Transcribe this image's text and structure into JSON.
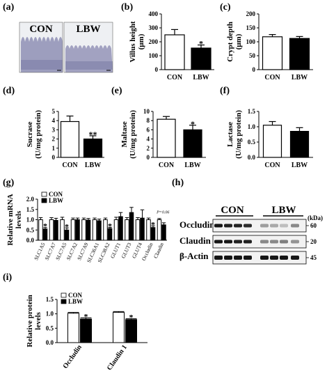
{
  "figure_labels": {
    "a": "(a)",
    "b": "(b)",
    "c": "(c)",
    "d": "(d)",
    "e": "(e)",
    "f": "(f)",
    "g": "(g)",
    "h": "(h)",
    "i": "(i)"
  },
  "histology": {
    "con_label": "CON",
    "lbw_label": "LBW",
    "colors": {
      "tissue": "#8e8fb4",
      "background": "#eef0f3"
    }
  },
  "colors": {
    "con_fill": "#ffffff",
    "lbw_fill": "#000000",
    "stroke": "#000000"
  },
  "chart_data": [
    {
      "id": "b",
      "type": "bar",
      "categories": [
        "CON",
        "LBW"
      ],
      "values": [
        250,
        155
      ],
      "errors": [
        38,
        22
      ],
      "ylabel": "Villus height (μm)",
      "ylabel_lines": [
        "Villus height",
        "(μm)"
      ],
      "ylim": [
        0,
        400
      ],
      "yticks": [
        "0",
        "100",
        "200",
        "300",
        "400"
      ],
      "significance": [
        "",
        "*"
      ]
    },
    {
      "id": "c",
      "type": "bar",
      "categories": [
        "CON",
        "LBW"
      ],
      "values": [
        118,
        112
      ],
      "errors": [
        8,
        7
      ],
      "ylabel": "Crypt depth (μm)",
      "ylabel_lines": [
        "Crypt depth",
        "(μm)"
      ],
      "ylim": [
        0,
        200
      ],
      "yticks": [
        "0",
        "50",
        "100",
        "150",
        "200"
      ],
      "significance": [
        "",
        ""
      ]
    },
    {
      "id": "d",
      "type": "bar",
      "categories": [
        "CON",
        "LBW"
      ],
      "values": [
        3.9,
        2.0
      ],
      "errors": [
        0.6,
        0.35
      ],
      "ylabel": "Sucrase (U/mg protein)",
      "ylabel_lines": [
        "Sucrase",
        "(U/mg protein)"
      ],
      "ylim": [
        0,
        5
      ],
      "yticks": [
        "0",
        "1",
        "2",
        "3",
        "4",
        "5"
      ],
      "significance": [
        "",
        "**"
      ]
    },
    {
      "id": "e",
      "type": "bar",
      "categories": [
        "CON",
        "LBW"
      ],
      "values": [
        8.3,
        6.0
      ],
      "errors": [
        0.6,
        1.0
      ],
      "ylabel": "Maltase (U/mg protein)",
      "ylabel_lines": [
        "Maltase",
        "(U/mg protein)"
      ],
      "ylim": [
        0,
        10
      ],
      "yticks": [
        "0",
        "2",
        "4",
        "6",
        "8",
        "10"
      ],
      "significance": [
        "",
        "*"
      ]
    },
    {
      "id": "f",
      "type": "bar",
      "categories": [
        "CON",
        "LBW"
      ],
      "values": [
        1.05,
        0.85
      ],
      "errors": [
        0.12,
        0.12
      ],
      "ylabel": "Lactase (U/mg protein)",
      "ylabel_lines": [
        "Lactase",
        "(U/mg protein)"
      ],
      "ylim": [
        0,
        1.5
      ],
      "yticks": [
        "0.0",
        "0.5",
        "1.0",
        "1.5"
      ],
      "significance": [
        "",
        ""
      ]
    },
    {
      "id": "g",
      "type": "bar",
      "categories": [
        "SLC1A5",
        "SLC7A7",
        "SLC7A5",
        "SLC7A2",
        "SLC7A9",
        "SLC36A1",
        "SLC38A2",
        "GLUT1",
        "GLUT3",
        "GLUT4",
        "Occludin",
        "Claudin"
      ],
      "series": [
        {
          "name": "CON",
          "values": [
            1.0,
            1.0,
            1.0,
            1.0,
            1.0,
            1.0,
            1.0,
            1.0,
            1.0,
            1.0,
            1.0,
            1.0
          ],
          "errors": [
            0.1,
            0.1,
            0.12,
            0.08,
            0.08,
            0.08,
            0.08,
            0.12,
            0.1,
            0.1,
            0.08,
            0.06
          ]
        },
        {
          "name": "LBW",
          "values": [
            0.55,
            0.97,
            0.5,
            1.0,
            0.98,
            0.95,
            0.57,
            1.15,
            1.35,
            1.08,
            0.62,
            0.75
          ],
          "errors": [
            0.07,
            0.1,
            0.1,
            0.08,
            0.08,
            0.08,
            0.06,
            0.2,
            0.25,
            0.4,
            0.08,
            0.1
          ]
        }
      ],
      "ylabel": "Relative mRNA levels",
      "ylabel_lines": [
        "Relative mRNA",
        "levels"
      ],
      "ylim": [
        0,
        2.0
      ],
      "yticks": [
        "0.0",
        "0.5",
        "1.0",
        "1.5",
        "2.0"
      ],
      "significance": [
        "*",
        "",
        "*",
        "",
        "",
        "",
        "*",
        "",
        "",
        "",
        "*",
        ""
      ],
      "annotation": "P=0.06",
      "annotation_category": "Claudin",
      "legend": [
        "CON",
        "LBW"
      ]
    },
    {
      "id": "i",
      "type": "bar",
      "categories": [
        "Occludin",
        "Claudin 1"
      ],
      "series": [
        {
          "name": "CON",
          "values": [
            1.02,
            1.05
          ],
          "errors": [
            0.03,
            0.03
          ]
        },
        {
          "name": "LBW",
          "values": [
            0.82,
            0.8
          ],
          "errors": [
            0.04,
            0.03
          ]
        }
      ],
      "ylabel": "Relative protein levels",
      "ylabel_lines": [
        "Relative protein",
        "levels"
      ],
      "ylim": [
        0,
        1.5
      ],
      "yticks": [
        "0.0",
        "0.5",
        "1.0",
        "1.5"
      ],
      "significance": [
        "*",
        "*"
      ],
      "legend": [
        "CON",
        "LBW"
      ]
    }
  ],
  "western_blot": {
    "groups": [
      "CON",
      "LBW"
    ],
    "kda_label": "(kDa)",
    "rows": [
      {
        "label": "Occludin",
        "marker": "60",
        "intensity": [
          1.0,
          0.95,
          0.95,
          0.9,
          0.35,
          0.3,
          0.2,
          0.45
        ]
      },
      {
        "label": "Claudin 1",
        "marker": "20",
        "intensity": [
          1.0,
          1.0,
          0.95,
          0.95,
          0.45,
          0.45,
          0.5,
          0.4
        ]
      },
      {
        "label": "β-Actin",
        "marker": "45",
        "intensity": [
          1.0,
          1.0,
          1.0,
          1.0,
          1.0,
          1.0,
          1.0,
          1.0
        ]
      }
    ]
  }
}
